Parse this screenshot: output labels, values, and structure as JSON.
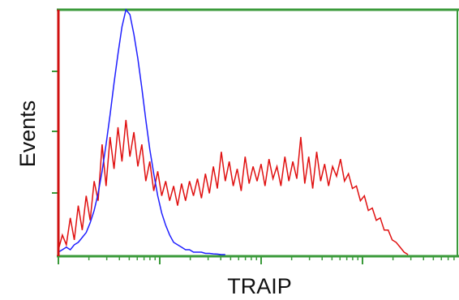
{
  "chart_data": {
    "type": "line",
    "xlabel": "TRAIP",
    "ylabel": "Events",
    "xlim": [
      0,
      100
    ],
    "ylim": [
      0,
      100
    ],
    "series": [
      {
        "color": "#1f1fff",
        "x": [
          0,
          1,
          2,
          3,
          4,
          5,
          6,
          7,
          8,
          9,
          10,
          11,
          12,
          13,
          14,
          15,
          16,
          17,
          18,
          19,
          20,
          21,
          22,
          23,
          24,
          25,
          26,
          27,
          28,
          29,
          30,
          31,
          32,
          33,
          34,
          35,
          36,
          37,
          38,
          39,
          40,
          41,
          42
        ],
        "values": [
          1,
          2,
          3,
          2,
          4,
          5,
          7,
          9,
          13,
          18,
          25,
          34,
          45,
          57,
          70,
          82,
          93,
          100,
          98,
          90,
          80,
          68,
          55,
          43,
          33,
          24,
          17,
          12,
          8,
          5,
          4,
          3,
          2,
          2,
          1,
          1,
          1,
          0.5,
          0.5,
          0.3,
          0.2,
          0,
          0
        ]
      },
      {
        "color": "#e01010",
        "x": [
          0,
          1,
          2,
          3,
          4,
          5,
          6,
          7,
          8,
          9,
          10,
          11,
          12,
          13,
          14,
          15,
          16,
          17,
          18,
          19,
          20,
          21,
          22,
          23,
          24,
          25,
          26,
          27,
          28,
          29,
          30,
          31,
          32,
          33,
          34,
          35,
          36,
          37,
          38,
          39,
          40,
          41,
          42,
          43,
          44,
          45,
          46,
          47,
          48,
          49,
          50,
          51,
          52,
          53,
          54,
          55,
          56,
          57,
          58,
          59,
          60,
          61,
          62,
          63,
          64,
          65,
          66,
          67,
          68,
          69,
          70,
          71,
          72,
          73,
          74,
          75,
          76,
          77,
          78,
          79,
          80,
          81,
          82,
          83,
          84,
          85,
          86,
          87,
          88
        ],
        "values": [
          2,
          8,
          4,
          15,
          6,
          20,
          10,
          24,
          14,
          30,
          22,
          45,
          28,
          48,
          35,
          52,
          38,
          55,
          40,
          50,
          36,
          45,
          30,
          38,
          26,
          34,
          24,
          30,
          22,
          28,
          20,
          29,
          22,
          30,
          24,
          31,
          23,
          33,
          25,
          36,
          27,
          42,
          30,
          38,
          28,
          35,
          26,
          40,
          29,
          36,
          30,
          37,
          28,
          39,
          31,
          36,
          28,
          40,
          30,
          38,
          31,
          48,
          29,
          40,
          27,
          42,
          30,
          37,
          28,
          36,
          32,
          39,
          30,
          33,
          27,
          28,
          22,
          24,
          18,
          19,
          14,
          15,
          10,
          10,
          6,
          5,
          3,
          1,
          0
        ]
      }
    ]
  }
}
